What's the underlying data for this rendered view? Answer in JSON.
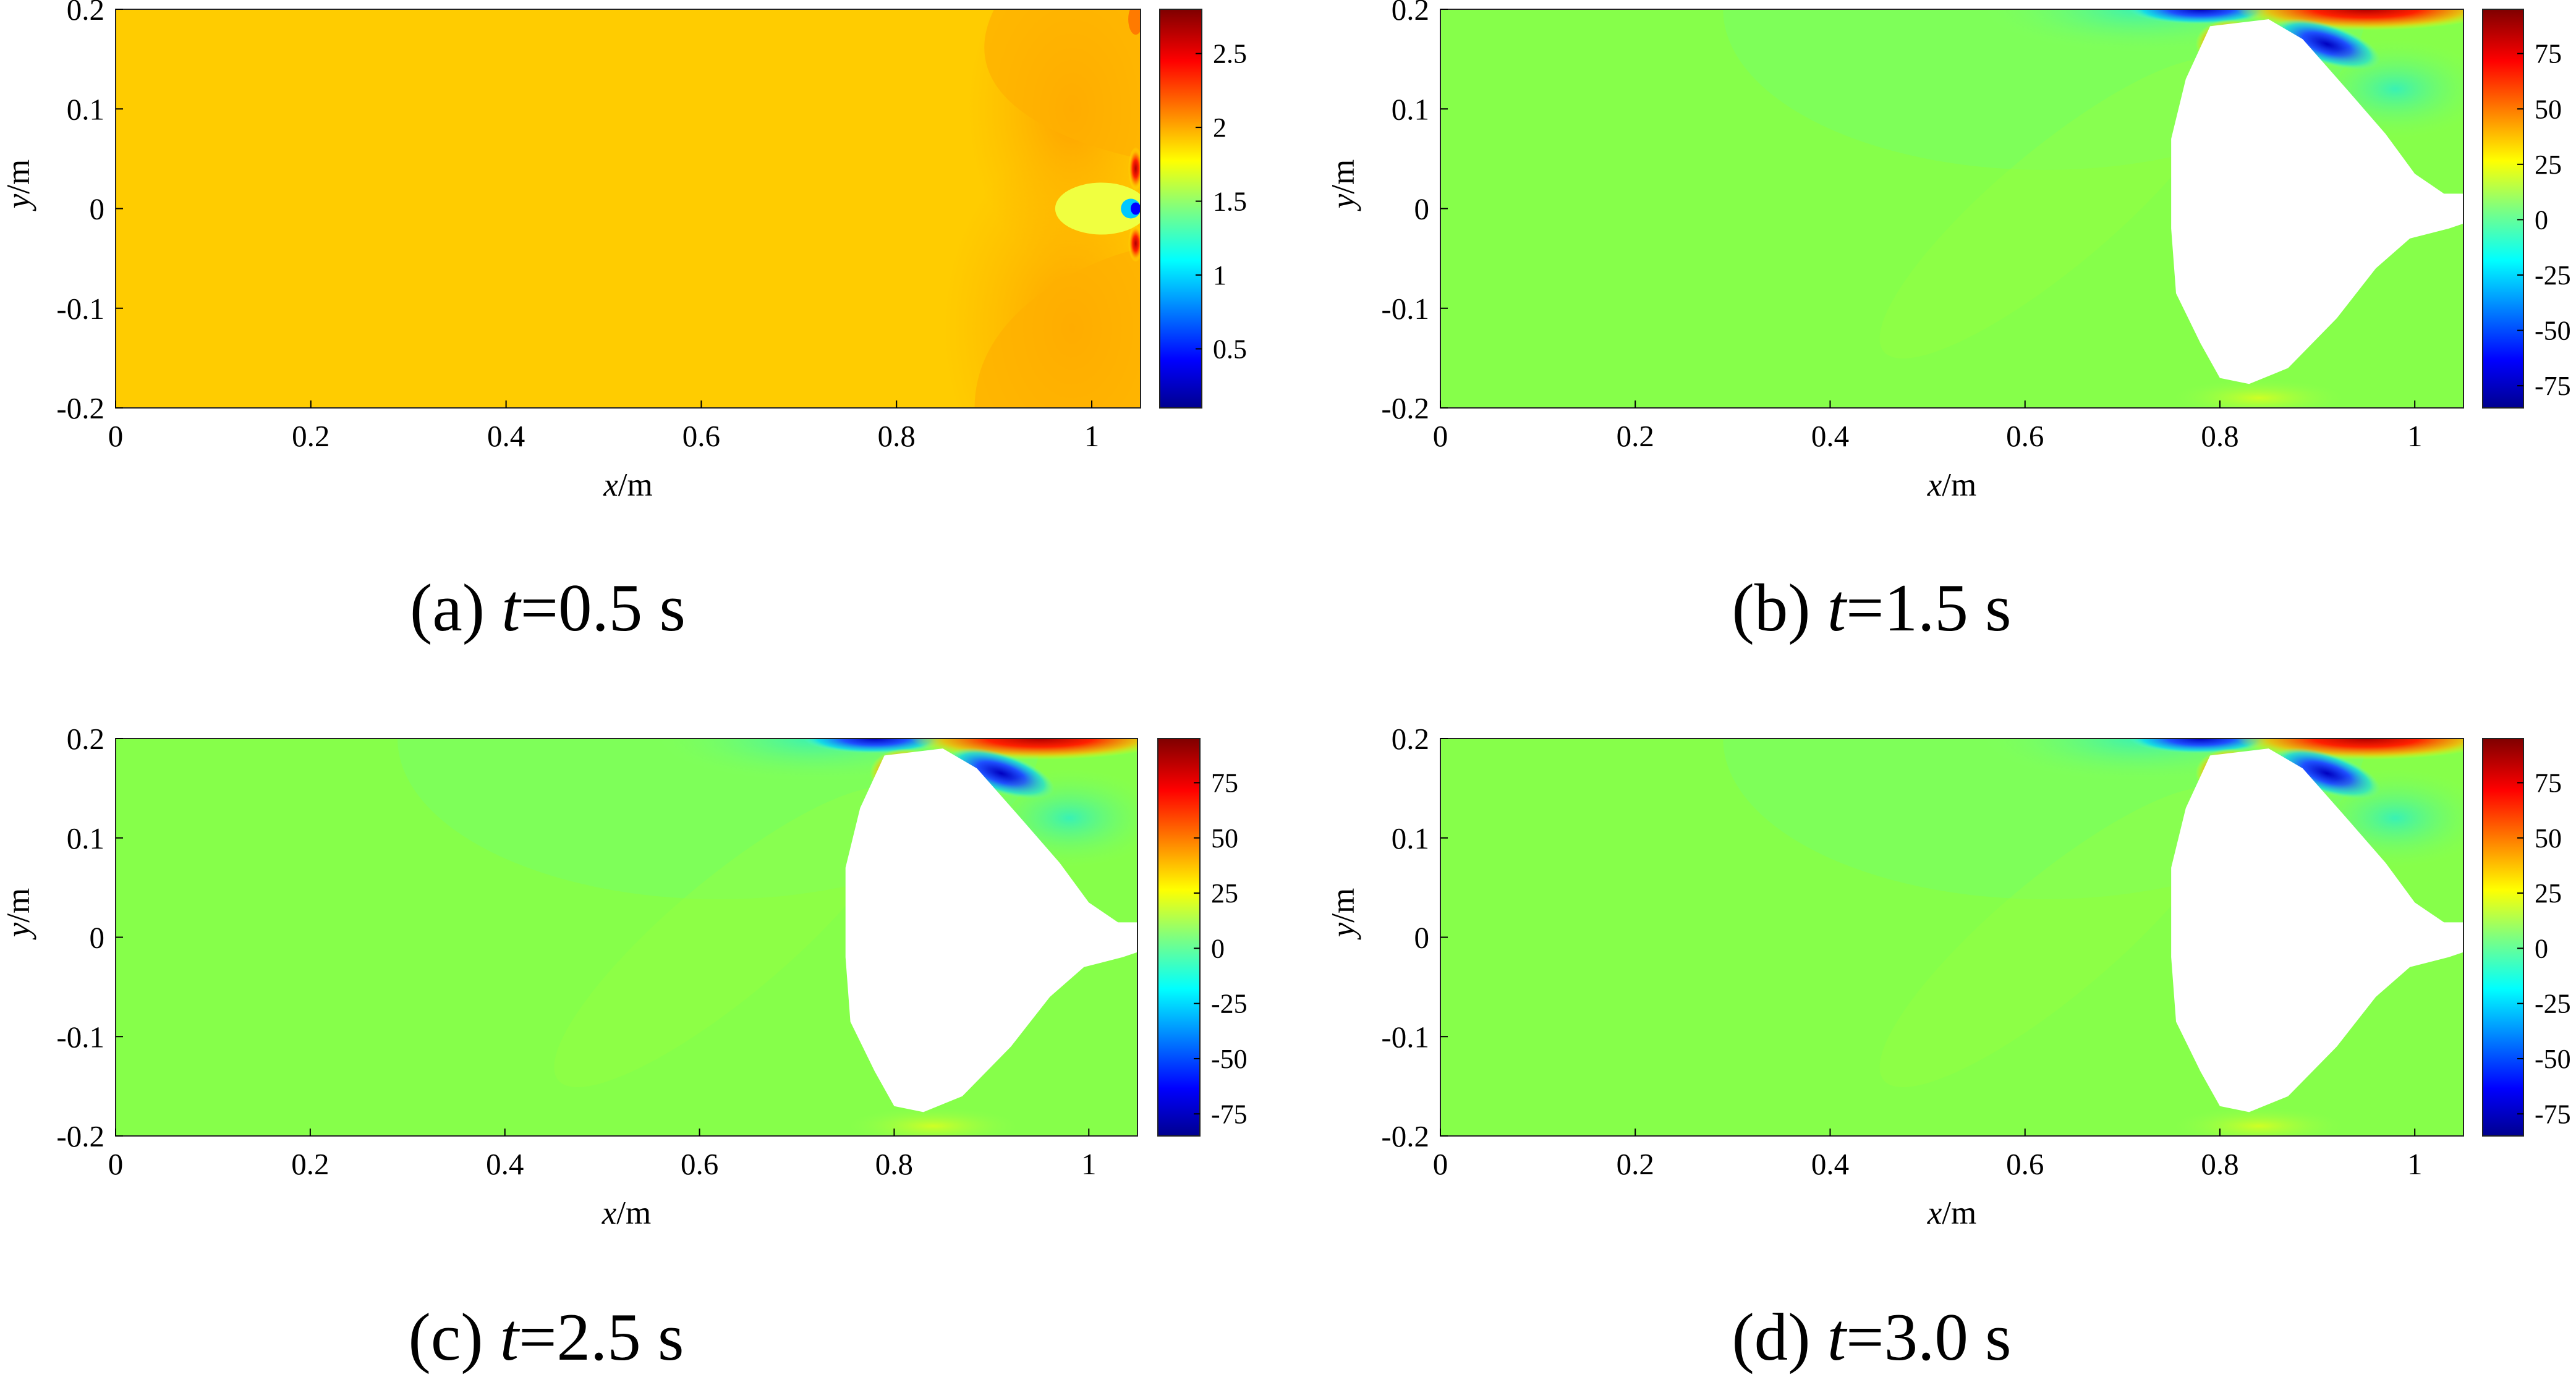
{
  "figure": {
    "panels": [
      {
        "caption_tag": "(a) ",
        "caption_t": "t",
        "caption_value": "=0.5 s",
        "xlabel_var": "x",
        "xlabel_unit": "/m",
        "ylabel_var": "y",
        "ylabel_unit": "/m",
        "x_ticks": [
          "0",
          "0.2",
          "0.4",
          "0.6",
          "0.8",
          "1"
        ],
        "y_ticks": [
          "0.2",
          "0.1",
          "0",
          "-0.1",
          "-0.2"
        ],
        "colorbar_ticks": [
          "2.5",
          "2",
          "1.5",
          "1",
          "0.5"
        ]
      },
      {
        "caption_tag": "(b) ",
        "caption_t": "t",
        "caption_value": "=1.5 s",
        "xlabel_var": "x",
        "xlabel_unit": "/m",
        "ylabel_var": "y",
        "ylabel_unit": "/m",
        "x_ticks": [
          "0",
          "0.2",
          "0.4",
          "0.6",
          "0.8",
          "1"
        ],
        "y_ticks": [
          "0.2",
          "0.1",
          "0",
          "-0.1",
          "-0.2"
        ],
        "colorbar_ticks": [
          "75",
          "50",
          "25",
          "0",
          "-25",
          "-50",
          "-75"
        ]
      },
      {
        "caption_tag": "(c) ",
        "caption_t": "t",
        "caption_value": "=2.5 s",
        "xlabel_var": "x",
        "xlabel_unit": "/m",
        "ylabel_var": "y",
        "ylabel_unit": "/m",
        "x_ticks": [
          "0",
          "0.2",
          "0.4",
          "0.6",
          "0.8",
          "1"
        ],
        "y_ticks": [
          "0.2",
          "0.1",
          "0",
          "-0.1",
          "-0.2"
        ],
        "colorbar_ticks": [
          "75",
          "50",
          "25",
          "0",
          "-25",
          "-50",
          "-75"
        ]
      },
      {
        "caption_tag": "(d) ",
        "caption_t": "t",
        "caption_value": "=3.0 s",
        "xlabel_var": "x",
        "xlabel_unit": "/m",
        "ylabel_var": "y",
        "ylabel_unit": "/m",
        "x_ticks": [
          "0",
          "0.2",
          "0.4",
          "0.6",
          "0.8",
          "1"
        ],
        "y_ticks": [
          "0.2",
          "0.1",
          "0",
          "-0.1",
          "-0.2"
        ],
        "colorbar_ticks": [
          "75",
          "50",
          "25",
          "0",
          "-25",
          "-50",
          "-75"
        ]
      }
    ]
  },
  "chart_data": [
    {
      "type": "heatmap",
      "panel": "(a)",
      "time_s": 0.5,
      "xlim": [
        0,
        1.05
      ],
      "ylim": [
        -0.2,
        0.2
      ],
      "colorbar_range": [
        0.1,
        2.8
      ],
      "colormap": "jet",
      "field": "nearly uniform ~1.9 (orange) with a dipole disturbance at x≈1.04, y≈0"
    },
    {
      "type": "heatmap",
      "panel": "(b)",
      "time_s": 1.5,
      "xlim": [
        0,
        1.05
      ],
      "ylim": [
        -0.2,
        0.2
      ],
      "colorbar_range": [
        -85,
        95
      ],
      "colormap": "jet",
      "field": "background ~0 (green); blank cavity spanning x≈0.75–1.05; extremes near top boundary x≈0.8–1.0"
    },
    {
      "type": "heatmap",
      "panel": "(c)",
      "time_s": 2.5,
      "xlim": [
        0,
        1.05
      ],
      "ylim": [
        -0.2,
        0.2
      ],
      "colorbar_range": [
        -85,
        95
      ],
      "colormap": "jet",
      "field": "background ~0 (green); blank cavity spanning x≈0.75–1.05; extremes near top boundary x≈0.8–1.0"
    },
    {
      "type": "heatmap",
      "panel": "(d)",
      "time_s": 3.0,
      "xlim": [
        0,
        1.05
      ],
      "ylim": [
        -0.2,
        0.2
      ],
      "colorbar_range": [
        -85,
        95
      ],
      "colormap": "jet",
      "field": "background ~0 (green); blank cavity spanning x≈0.75–1.05; extremes near top boundary x≈0.8–1.0"
    }
  ]
}
